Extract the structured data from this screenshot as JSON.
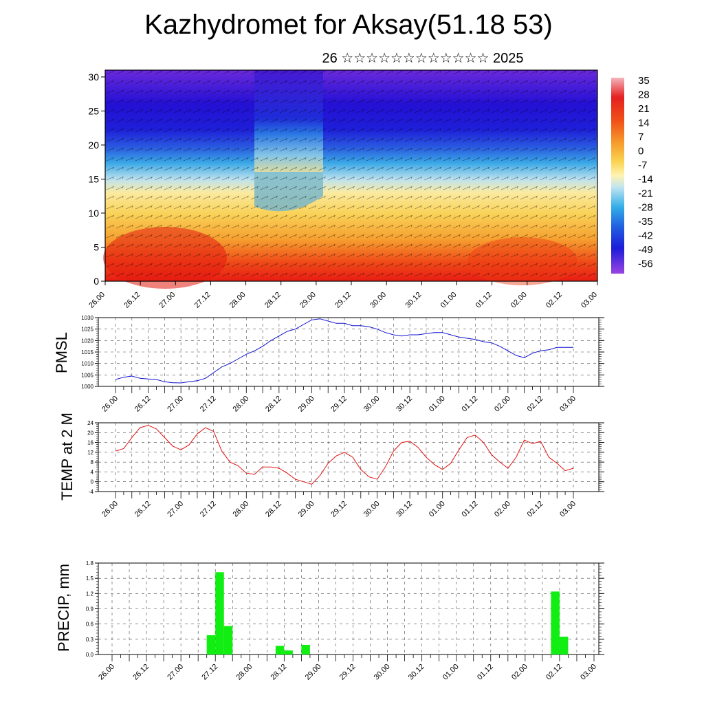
{
  "title": "Kazhydromet for Aksay(51.18 53)",
  "subtitle": "26 ☆☆☆☆☆☆☆☆☆☆☆☆ 2025",
  "time_labels": [
    "26.00",
    "26.12",
    "27.00",
    "27.12",
    "28.00",
    "28.12",
    "29.00",
    "29.12",
    "30.00",
    "30.12",
    "01.00",
    "01.12",
    "02.00",
    "02.12",
    "03.00"
  ],
  "colors": {
    "pmsl_line": "#1010d0",
    "temp_line": "#e01010",
    "precip_bar": "#11ee11"
  },
  "chart_data": [
    {
      "type": "heatmap",
      "name": "cross-section",
      "y_ticks": [
        0,
        5,
        10,
        15,
        20,
        25,
        30
      ],
      "ylim": [
        0,
        31
      ],
      "colorbar": {
        "labels": [
          "35",
          "28",
          "21",
          "14",
          "7",
          "0",
          "-7",
          "-14",
          "-21",
          "-28",
          "-35",
          "-42",
          "-49",
          "-56"
        ],
        "colors": [
          "#f2b0b8",
          "#e82828",
          "#ee2a14",
          "#f45c14",
          "#f68c1e",
          "#f8b030",
          "#fad250",
          "#fff0a0",
          "#c8e8f0",
          "#40b8ec",
          "#2090e8",
          "#2060e0",
          "#2028d8",
          "#6a1ed8",
          "#9a40e0"
        ]
      }
    },
    {
      "type": "line",
      "ylabel": "PMSL",
      "y_ticks": [
        "1000",
        "1005",
        "1010",
        "1015",
        "1020",
        "1025",
        "1030"
      ],
      "ylim": [
        1000,
        1030
      ],
      "x": [
        0,
        3,
        6,
        9,
        12,
        15,
        18,
        21,
        24,
        27,
        30,
        33,
        36,
        39,
        42,
        45,
        48,
        51,
        54,
        57,
        60,
        63,
        66,
        69,
        72,
        75,
        78,
        81,
        84,
        87,
        90,
        93,
        96,
        99,
        102,
        105,
        108,
        111,
        114,
        117,
        120,
        123,
        126,
        129,
        132,
        135,
        138,
        141,
        144,
        147,
        150,
        153,
        156,
        159,
        162,
        165,
        168
      ],
      "values": [
        1003,
        1004,
        1004.5,
        1003.5,
        1003.2,
        1003,
        1002,
        1001.6,
        1001.5,
        1002,
        1002.5,
        1003.5,
        1006,
        1008.5,
        1010,
        1012,
        1014,
        1015.5,
        1017.5,
        1020,
        1022,
        1024,
        1025,
        1027,
        1029,
        1029.5,
        1028.5,
        1027.5,
        1027.5,
        1026.5,
        1026.5,
        1026,
        1025,
        1023.5,
        1022.5,
        1022,
        1022.5,
        1022.5,
        1023,
        1023.5,
        1023.5,
        1022.5,
        1021.5,
        1021,
        1020.5,
        1019.5,
        1019,
        1017.5,
        1015.5,
        1013.5,
        1012.5,
        1014.5,
        1015.5,
        1016,
        1017,
        1017,
        1017
      ]
    },
    {
      "type": "line",
      "ylabel": "TEMP at 2 M",
      "y_ticks": [
        "-4",
        "0",
        "4",
        "8",
        "12",
        "16",
        "20",
        "24"
      ],
      "ylim": [
        -4,
        24
      ],
      "x": [
        0,
        3,
        6,
        9,
        12,
        15,
        18,
        21,
        24,
        27,
        30,
        33,
        36,
        39,
        42,
        45,
        48,
        51,
        54,
        57,
        60,
        63,
        66,
        69,
        72,
        75,
        78,
        81,
        84,
        87,
        90,
        93,
        96,
        99,
        102,
        105,
        108,
        111,
        114,
        117,
        120,
        123,
        126,
        129,
        132,
        135,
        138,
        141,
        144,
        147,
        150,
        153,
        156,
        159,
        162,
        165,
        168
      ],
      "values": [
        12.5,
        13.5,
        18,
        22,
        23,
        21.5,
        18,
        14.5,
        13,
        15,
        19.5,
        22,
        20.5,
        12.5,
        8,
        6.5,
        3.5,
        3,
        6,
        6,
        5.5,
        3.5,
        1,
        0,
        -1,
        2.5,
        7.5,
        10.5,
        12,
        10,
        5,
        2,
        1,
        6,
        12.5,
        16,
        16.5,
        14,
        10,
        7,
        5,
        7.5,
        13,
        18,
        19,
        16,
        11,
        8,
        5.5,
        10,
        17,
        15.5,
        16.5,
        10,
        7.5,
        4.5,
        5.5
      ]
    },
    {
      "type": "bar",
      "ylabel": "PRECIP, mm",
      "y_ticks": [
        "0.0",
        "0.3",
        "0.6",
        "0.9",
        "1.2",
        "1.5",
        "1.8"
      ],
      "ylim": [
        0,
        1.8
      ],
      "x": [
        33,
        36,
        39,
        57,
        60,
        66,
        153,
        156
      ],
      "values": [
        0.38,
        1.62,
        0.56,
        0.17,
        0.08,
        0.19,
        1.24,
        0.35
      ]
    }
  ]
}
